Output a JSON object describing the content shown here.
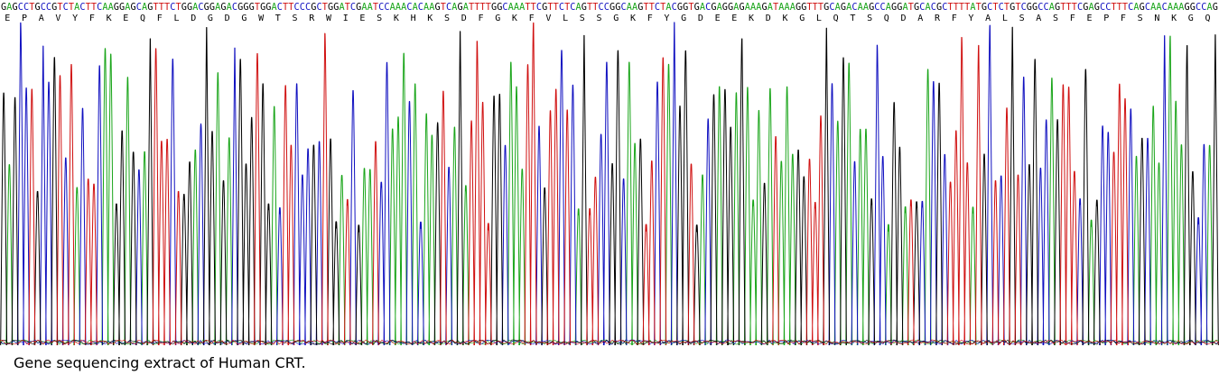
{
  "chart_data": {
    "type": "line",
    "title": "",
    "xlabel": "",
    "ylabel": "",
    "grid": false,
    "legend": "none",
    "colors": {
      "A": "#1aa51a",
      "C": "#1010c0",
      "G": "#000000",
      "T": "#d01010"
    },
    "dna_sequence": "GAGCCTGCCGTCTACTTCAAGGAGCAGTTTCTGGACGGAGACGGGTGGACTTCCCGCTGGATCGAATCCAAACACAAGTCAGATTTTGGCAAATTCGTTCTCAGTTCCGGCAAGTTCTACGGTGACGAGGAGAAAGATAAAGGTTTGCAGACAAGCCAGGATGCACGCTTTTATGCTCTGTCGGCCAGTTTCGAGCCTTTCAGCAACAAAGGCCAG",
    "amino_acids": [
      "E",
      "P",
      "A",
      "V",
      "Y",
      "F",
      "K",
      "E",
      "Q",
      "F",
      "L",
      "D",
      "G",
      "D",
      "G",
      "W",
      "T",
      "S",
      "R",
      "W",
      "I",
      "E",
      "S",
      "K",
      "H",
      "K",
      "S",
      "D",
      "F",
      "G",
      "K",
      "F",
      "V",
      "L",
      "S",
      "S",
      "G",
      "K",
      "F",
      "Y",
      "G",
      "D",
      "E",
      "E",
      "K",
      "D",
      "K",
      "G",
      "L",
      "Q",
      "T",
      "S",
      "Q",
      "D",
      "A",
      "R",
      "F",
      "Y",
      "A",
      "L",
      "S",
      "A",
      "S",
      "F",
      "E",
      "P",
      "F",
      "S",
      "N",
      "K",
      "G",
      "Q"
    ]
  },
  "caption": "Gene sequencing extract of Human CRT."
}
